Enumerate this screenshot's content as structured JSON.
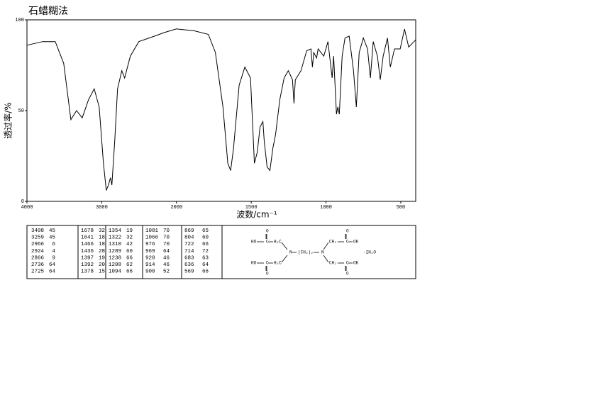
{
  "chart_data": {
    "type": "line",
    "title": "石蜡糊法",
    "xlabel": "波数/cm⁻¹",
    "ylabel": "透过率/%",
    "xlim": [
      4000,
      400
    ],
    "xticks": [
      4000,
      3000,
      2000,
      1500,
      1000,
      500
    ],
    "ylim": [
      0,
      100
    ],
    "yticks": [
      0,
      50,
      100
    ],
    "color": "#000000",
    "x": [
      4000,
      3792,
      3621,
      3508,
      3413,
      3337,
      3261,
      3176,
      3100,
      3034,
      2977,
      2939,
      2911,
      2883,
      2864,
      2826,
      2788,
      2731,
      2693,
      2617,
      2504,
      2295,
      2163,
      2000,
      1882,
      1787,
      1740,
      1689,
      1657,
      1638,
      1619,
      1581,
      1543,
      1505,
      1479,
      1460,
      1441,
      1422,
      1413,
      1394,
      1375,
      1356,
      1337,
      1309,
      1280,
      1252,
      1224,
      1214,
      1205,
      1167,
      1129,
      1101,
      1091,
      1082,
      1063,
      1053,
      1015,
      987,
      959,
      949,
      930,
      921,
      911,
      892,
      873,
      845,
      816,
      797,
      778,
      750,
      722,
      703,
      684,
      656,
      637,
      618,
      589,
      570,
      542,
      504,
      475,
      447,
      400
    ],
    "values": [
      86,
      88,
      88,
      76,
      45,
      50,
      46,
      56,
      62,
      52,
      21,
      6,
      9,
      13,
      9,
      33,
      62,
      72,
      68,
      80,
      88,
      91,
      93,
      95,
      94,
      92,
      82,
      52,
      21,
      17,
      29,
      64,
      74,
      68,
      21,
      27,
      41,
      44,
      33,
      19,
      17,
      29,
      37,
      56,
      68,
      72,
      67,
      54,
      67,
      72,
      83,
      84,
      74,
      82,
      79,
      84,
      80,
      88,
      68,
      80,
      48,
      52,
      48,
      80,
      90,
      91,
      72,
      52,
      82,
      90,
      84,
      68,
      88,
      80,
      67,
      80,
      90,
      74,
      84,
      84,
      95,
      85,
      89
    ]
  },
  "peak_table": [
    [
      [
        3408,
        45
      ],
      [
        3259,
        45
      ],
      [
        2966,
        6
      ],
      [
        2924,
        4
      ],
      [
        2866,
        9
      ],
      [
        2736,
        64
      ],
      [
        2725,
        64
      ]
    ],
    [
      [
        1678,
        32
      ],
      [
        1641,
        18
      ],
      [
        1466,
        18
      ],
      [
        1436,
        28
      ],
      [
        1397,
        19
      ],
      [
        1392,
        20
      ],
      [
        1378,
        15
      ]
    ],
    [
      [
        1354,
        19
      ],
      [
        1322,
        32
      ],
      [
        1310,
        42
      ],
      [
        1289,
        60
      ],
      [
        1238,
        66
      ],
      [
        1208,
        62
      ],
      [
        1094,
        66
      ]
    ],
    [
      [
        1081,
        70
      ],
      [
        1066,
        70
      ],
      [
        976,
        70
      ],
      [
        969,
        64
      ],
      [
        920,
        46
      ],
      [
        914,
        46
      ],
      [
        900,
        52
      ]
    ],
    [
      [
        869,
        65
      ],
      [
        804,
        60
      ],
      [
        722,
        66
      ],
      [
        714,
        72
      ],
      [
        683,
        63
      ],
      [
        636,
        64
      ],
      [
        569,
        66
      ]
    ]
  ],
  "structure": [
    "O",
    "HO",
    "C",
    "H₂C",
    "N",
    "(CH₂)₂",
    "N",
    "CH₂",
    "C",
    "OK",
    "O",
    "·2H₂O",
    "HO",
    "C",
    "H₂C",
    "O",
    "CH₂",
    "C",
    "OK",
    "O"
  ]
}
